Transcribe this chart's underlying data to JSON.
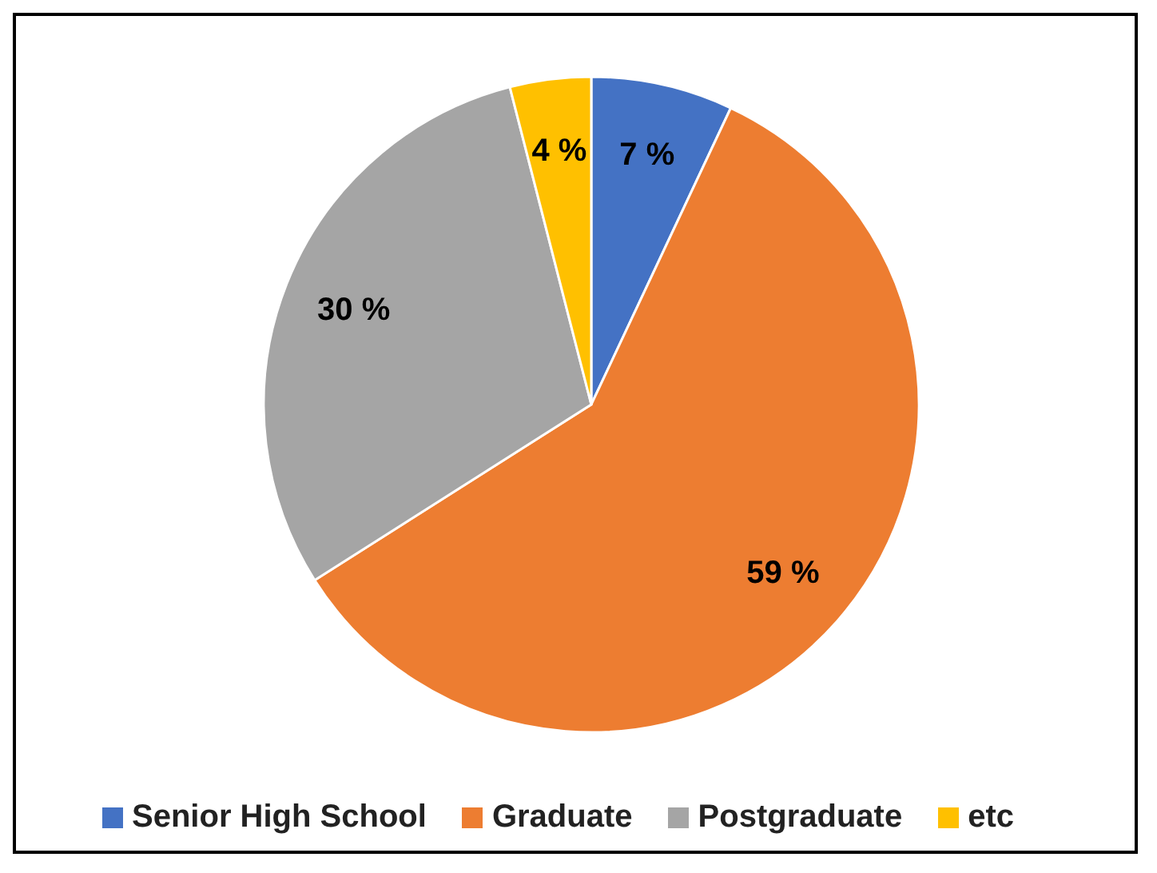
{
  "chart_data": {
    "type": "pie",
    "categories": [
      "Senior High School",
      "Graduate",
      "Postgraduate",
      "etc"
    ],
    "values": [
      7,
      59,
      30,
      4
    ],
    "colors": [
      "#4472c4",
      "#ed7d31",
      "#a5a5a5",
      "#ffc000"
    ],
    "value_labels": [
      "7 %",
      "59 %",
      "30 %",
      "4 %"
    ],
    "legend": "bottom"
  }
}
